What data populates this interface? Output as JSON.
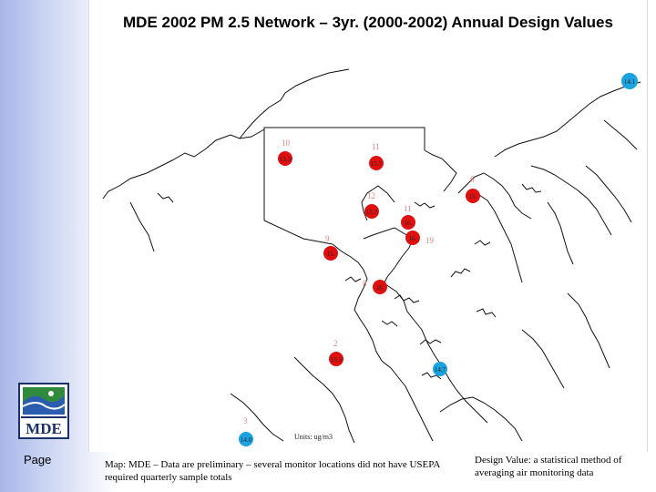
{
  "slide": {
    "title": "MDE 2002 PM 2.5 Network – 3yr. (2000-2002) Annual Design Values",
    "page_label": "Page",
    "caption_left": "Map: MDE – Data are preliminary – several monitor locations did not have USEPA required quarterly sample totals",
    "caption_right": "Design Value: a statistical method of averaging air monitoring data",
    "logo_text": "MDE",
    "map_units": "Units: ug/m3"
  },
  "colors": {
    "exceed": "#e01010",
    "attain": "#1aa3e0",
    "id_label": "#e88080"
  },
  "monitors": [
    {
      "id": "10",
      "value": "15.3",
      "status": "exceed"
    },
    {
      "id": "11",
      "value": "15.7",
      "status": "exceed"
    },
    {
      "id": "6",
      "value": "15.",
      "status": "exceed"
    },
    {
      "id": "12",
      "value": "15.7",
      "status": "exceed"
    },
    {
      "id": "11",
      "value": "16.",
      "status": "exceed"
    },
    {
      "id": "19",
      "value": "16.",
      "status": "exceed"
    },
    {
      "id": "9",
      "value": "15.",
      "status": "exceed"
    },
    {
      "id": "8",
      "value": "16.",
      "status": "exceed"
    },
    {
      "id": "2",
      "value": "15.3",
      "status": "exceed"
    },
    {
      "id": "",
      "value": "14.7",
      "status": "attain"
    },
    {
      "id": "3",
      "value": "14.0",
      "status": "attain"
    },
    {
      "id": "",
      "value": "14.1",
      "status": "attain"
    }
  ]
}
